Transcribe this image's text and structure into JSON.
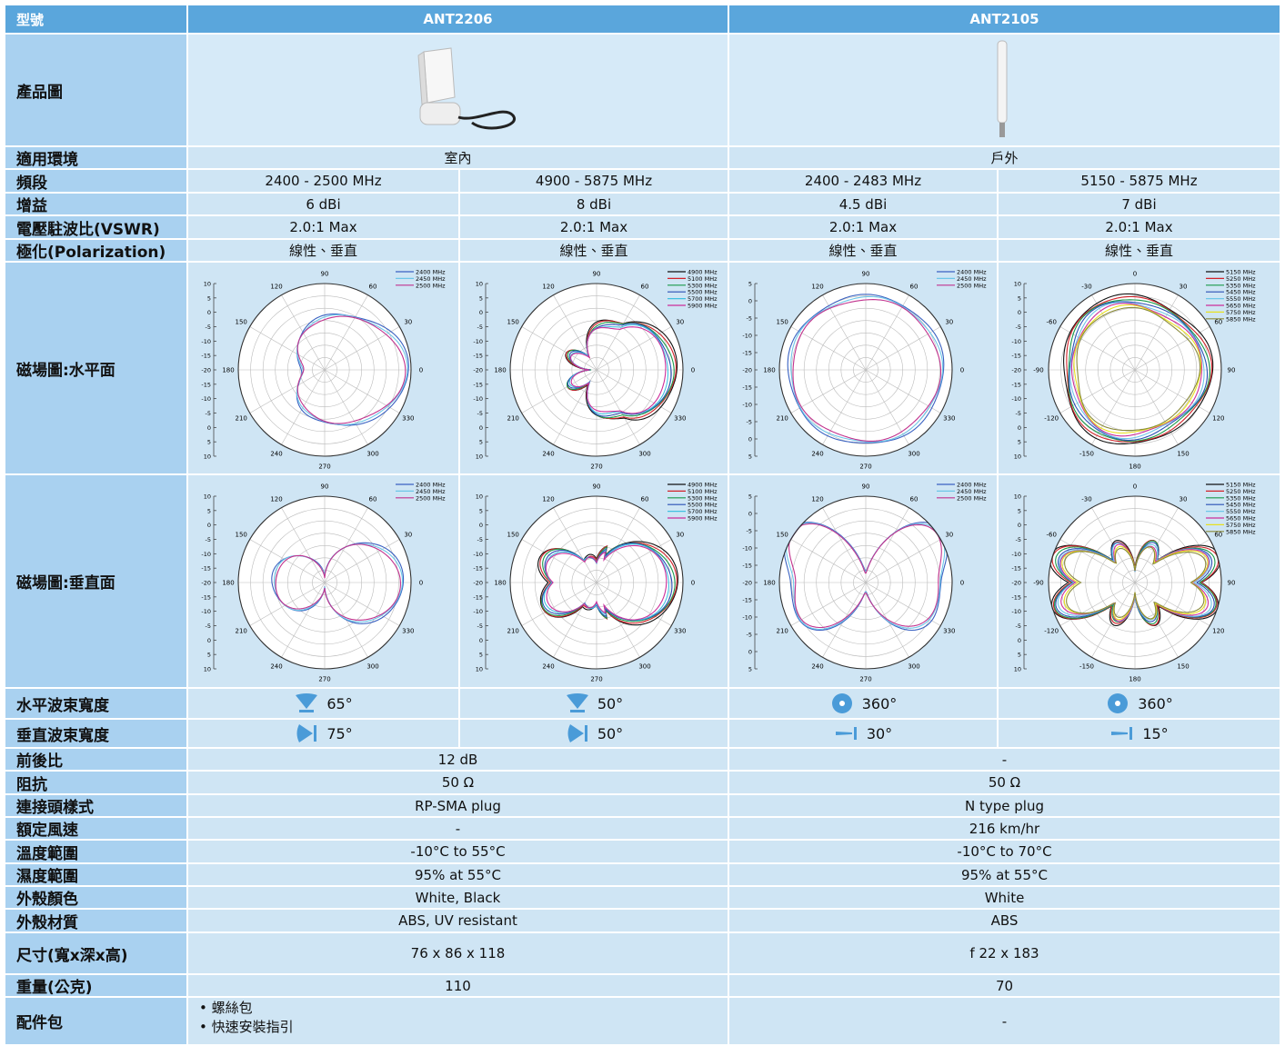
{
  "header": {
    "label": "型號",
    "models": [
      "ANT2206",
      "ANT2105"
    ]
  },
  "image_row": {
    "label": "產品圖"
  },
  "rows": [
    {
      "label": "適用環境",
      "values": [
        "室內",
        "戶外"
      ]
    },
    {
      "label": "頻段",
      "values": [
        "2400 - 2500 MHz",
        "4900 - 5875 MHz",
        "2400 - 2483 MHz",
        "5150 - 5875 MHz"
      ]
    },
    {
      "label": "增益",
      "values": [
        "6 dBi",
        "8 dBi",
        "4.5 dBi",
        "7 dBi"
      ]
    },
    {
      "label": "電壓駐波比(VSWR)",
      "values": [
        "2.0:1 Max",
        "2.0:1 Max",
        "2.0:1 Max",
        "2.0:1 Max"
      ]
    },
    {
      "label": "極化(Polarization)",
      "values": [
        "線性、垂直",
        "線性、垂直",
        "線性、垂直",
        "線性、垂直"
      ]
    }
  ],
  "patterns": [
    {
      "label": "磁場圖:水平面",
      "plots": [
        {
          "angles": [
            90,
            60,
            30,
            0,
            330,
            300,
            270,
            240,
            210,
            180,
            150,
            120
          ],
          "r_labels": [
            10,
            5,
            0,
            -5,
            -10,
            -15,
            -20,
            -15,
            -10,
            -5,
            0,
            5,
            10
          ],
          "series": [
            {
              "name": "2400 MHz",
              "color": "#3a62c2"
            },
            {
              "name": "2450 MHz",
              "color": "#6ec6e8"
            },
            {
              "name": "2500 MHz",
              "color": "#c2338e"
            }
          ]
        },
        {
          "angles": [
            90,
            60,
            30,
            0,
            330,
            300,
            270,
            240,
            210,
            180,
            150,
            120
          ],
          "r_labels": [
            10,
            5,
            0,
            -5,
            -10,
            -15,
            -20,
            -15,
            -10,
            -5,
            0,
            5,
            10
          ],
          "series": [
            {
              "name": "4900 MHz",
              "color": "#111111"
            },
            {
              "name": "5100 MHz",
              "color": "#d2232a"
            },
            {
              "name": "5300 MHz",
              "color": "#1a9a4a"
            },
            {
              "name": "5500 MHz",
              "color": "#2a4fb5"
            },
            {
              "name": "5700 MHz",
              "color": "#41c0e0"
            },
            {
              "name": "5900 MHz",
              "color": "#cc2e9a"
            }
          ]
        },
        {
          "angles": [
            90,
            60,
            30,
            0,
            330,
            300,
            270,
            240,
            210,
            180,
            150,
            120
          ],
          "r_labels": [
            5,
            0,
            -5,
            -10,
            -15,
            -20,
            -15,
            -10,
            -5,
            0,
            5
          ],
          "series": [
            {
              "name": "2400 MHz",
              "color": "#3a62c2"
            },
            {
              "name": "2450 MHz",
              "color": "#6ec6e8"
            },
            {
              "name": "2500 MHz",
              "color": "#c2338e"
            }
          ]
        },
        {
          "angles": [
            0,
            30,
            60,
            90,
            120,
            150,
            180,
            -150,
            -120,
            -90,
            -60,
            -30
          ],
          "r_labels": [
            10,
            5,
            0,
            -5,
            -10,
            -15,
            -20,
            -15,
            -10,
            -5,
            0,
            5,
            10
          ],
          "series": [
            {
              "name": "5150 MHz",
              "color": "#111111"
            },
            {
              "name": "5250 MHz",
              "color": "#d2232a"
            },
            {
              "name": "5350 MHz",
              "color": "#1a9a4a"
            },
            {
              "name": "5450 MHz",
              "color": "#2a4fb5"
            },
            {
              "name": "5550 MHz",
              "color": "#6ec6e8"
            },
            {
              "name": "5650 MHz",
              "color": "#cc2e9a"
            },
            {
              "name": "5750 MHz",
              "color": "#e8e020"
            },
            {
              "name": "5850 MHz",
              "color": "#8a8a3a"
            }
          ]
        }
      ]
    },
    {
      "label": "磁場圖:垂直面",
      "plots": [
        {
          "angles": [
            90,
            60,
            30,
            0,
            330,
            300,
            270,
            240,
            210,
            180,
            150,
            120
          ],
          "r_labels": [
            10,
            5,
            0,
            -5,
            -10,
            -15,
            -20,
            -15,
            -10,
            -5,
            0,
            5,
            10
          ],
          "series": [
            {
              "name": "2400 MHz",
              "color": "#3a62c2"
            },
            {
              "name": "2450 MHz",
              "color": "#6ec6e8"
            },
            {
              "name": "2500 MHz",
              "color": "#c2338e"
            }
          ]
        },
        {
          "angles": [
            90,
            60,
            30,
            0,
            330,
            300,
            270,
            240,
            210,
            180,
            150,
            120
          ],
          "r_labels": [
            10,
            5,
            0,
            -5,
            -10,
            -15,
            -20,
            -15,
            -10,
            -5,
            0,
            5,
            10
          ],
          "series": [
            {
              "name": "4900 MHz",
              "color": "#111111"
            },
            {
              "name": "5100 MHz",
              "color": "#d2232a"
            },
            {
              "name": "5300 MHz",
              "color": "#1a9a4a"
            },
            {
              "name": "5500 MHz",
              "color": "#2a4fb5"
            },
            {
              "name": "5700 MHz",
              "color": "#41c0e0"
            },
            {
              "name": "5900 MHz",
              "color": "#cc2e9a"
            }
          ]
        },
        {
          "angles": [
            90,
            60,
            30,
            0,
            330,
            300,
            270,
            240,
            210,
            180,
            150,
            120
          ],
          "r_labels": [
            5,
            0,
            -5,
            -10,
            -15,
            -20,
            -15,
            -10,
            -5,
            0,
            5
          ],
          "series": [
            {
              "name": "2400 MHz",
              "color": "#3a62c2"
            },
            {
              "name": "2450 MHz",
              "color": "#6ec6e8"
            },
            {
              "name": "2500 MHz",
              "color": "#c2338e"
            }
          ]
        },
        {
          "angles": [
            0,
            30,
            60,
            90,
            120,
            150,
            180,
            -150,
            -120,
            -90,
            -60,
            -30
          ],
          "r_labels": [
            10,
            5,
            0,
            -5,
            -10,
            -15,
            -20,
            -15,
            -10,
            -5,
            0,
            5,
            10
          ],
          "series": [
            {
              "name": "5150 MHz",
              "color": "#111111"
            },
            {
              "name": "5250 MHz",
              "color": "#d2232a"
            },
            {
              "name": "5350 MHz",
              "color": "#1a9a4a"
            },
            {
              "name": "5450 MHz",
              "color": "#2a4fb5"
            },
            {
              "name": "5550 MHz",
              "color": "#6ec6e8"
            },
            {
              "name": "5650 MHz",
              "color": "#cc2e9a"
            },
            {
              "name": "5750 MHz",
              "color": "#e8e020"
            },
            {
              "name": "5850 MHz",
              "color": "#8a8a3a"
            }
          ]
        }
      ]
    }
  ],
  "beam_rows": [
    {
      "label": "水平波束寬度",
      "values": [
        "65°",
        "50°",
        "360°",
        "360°"
      ]
    },
    {
      "label": "垂直波束寬度",
      "values": [
        "75°",
        "50°",
        "30°",
        "15°"
      ]
    }
  ],
  "spec_rows": [
    {
      "label": "前後比",
      "values": [
        "12 dB",
        "-"
      ]
    },
    {
      "label": "阻抗",
      "values": [
        "50 Ω",
        "50 Ω"
      ]
    },
    {
      "label": "連接頭樣式",
      "values": [
        "RP-SMA plug",
        "N type plug"
      ]
    },
    {
      "label": "額定風速",
      "values": [
        "-",
        "216 km/hr"
      ]
    },
    {
      "label": "溫度範圍",
      "values": [
        "-10°C to 55°C",
        "-10°C to 70°C"
      ]
    },
    {
      "label": "濕度範圍",
      "values": [
        "95% at 55°C",
        "95% at 55°C"
      ]
    },
    {
      "label": "外殼顏色",
      "values": [
        "White, Black",
        "White"
      ]
    },
    {
      "label": "外殼材質",
      "values": [
        "ABS, UV resistant",
        "ABS"
      ]
    },
    {
      "label": "尺寸(寬x深x高)",
      "values": [
        "76 x 86 x 118",
        "f 22 x 183"
      ]
    },
    {
      "label": "重量(公克)",
      "values": [
        "110",
        "70"
      ]
    }
  ],
  "accessories": {
    "label": "配件包",
    "items": [
      "螺絲包",
      "快速安裝指引"
    ],
    "other": "-"
  }
}
